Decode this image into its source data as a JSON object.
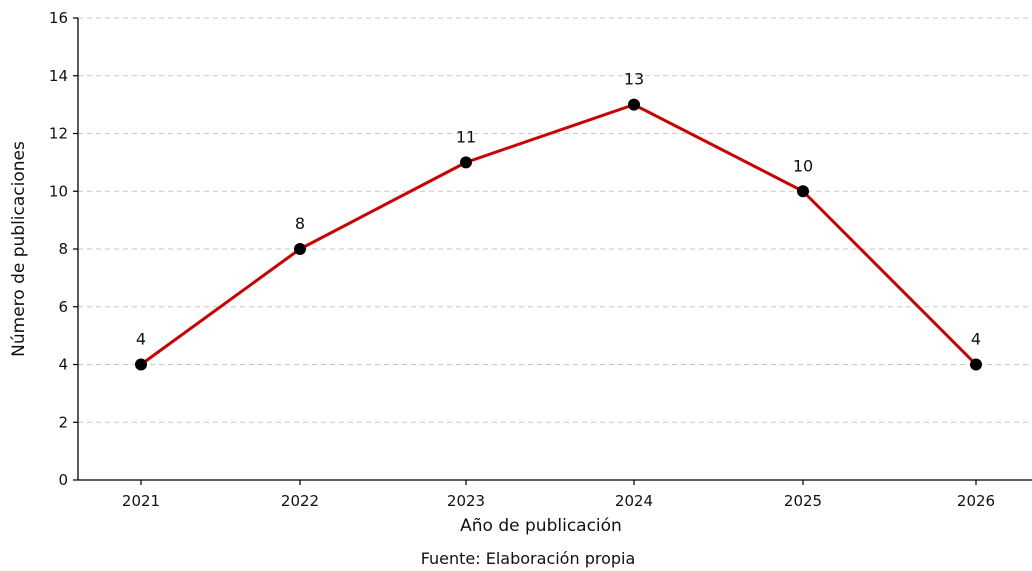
{
  "chart_data": {
    "type": "line",
    "x": [
      "2021",
      "2022",
      "2023",
      "2024",
      "2025",
      "2026"
    ],
    "series": [
      {
        "values": [
          4,
          8,
          11,
          13,
          10,
          4
        ]
      }
    ],
    "data_labels": [
      "4",
      "8",
      "11",
      "13",
      "10",
      "4"
    ],
    "xlabel": "Año de publicación",
    "ylabel": "Número de publicaciones",
    "ylim": [
      0,
      16
    ],
    "yticks": [
      "0",
      "2",
      "4",
      "6",
      "8",
      "10",
      "12",
      "14",
      "16"
    ],
    "grid": "horizontal dashed",
    "line_color": "#cc0000",
    "marker_color": "#000000",
    "source": "Fuente: Elaboración propia"
  }
}
